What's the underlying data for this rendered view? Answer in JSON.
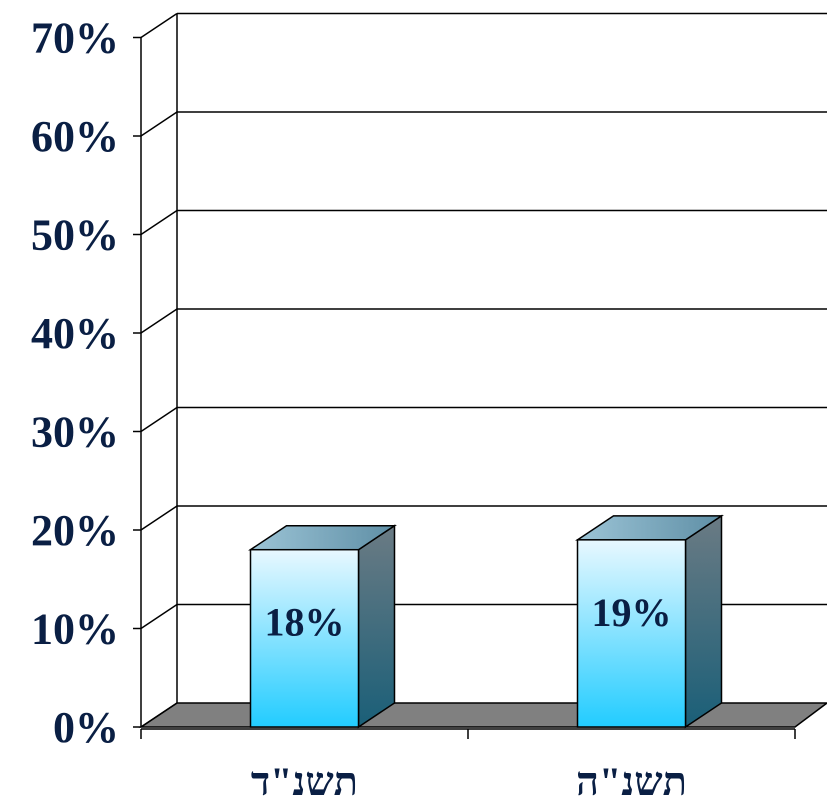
{
  "chart_data": {
    "type": "bar",
    "categories": [
      "תשנ\"ד",
      "תשנ\"ה"
    ],
    "values": [
      18,
      19
    ],
    "data_labels": [
      "18%",
      "19%"
    ],
    "yticks": [
      "0%",
      "10%",
      "20%",
      "30%",
      "40%",
      "50%",
      "60%",
      "70%"
    ],
    "ylim": [
      0,
      70
    ],
    "title": "",
    "xlabel": "",
    "ylabel": "",
    "grid": true,
    "legend": "none",
    "three_d": true,
    "colors": {
      "bar_top": "#e8f8ff",
      "bar_bottom": "#22ccff",
      "bar_side_top": "#6b7b84",
      "bar_side_bottom": "#1a5f78",
      "floor": "#808080",
      "text": "#0a1f44"
    }
  }
}
